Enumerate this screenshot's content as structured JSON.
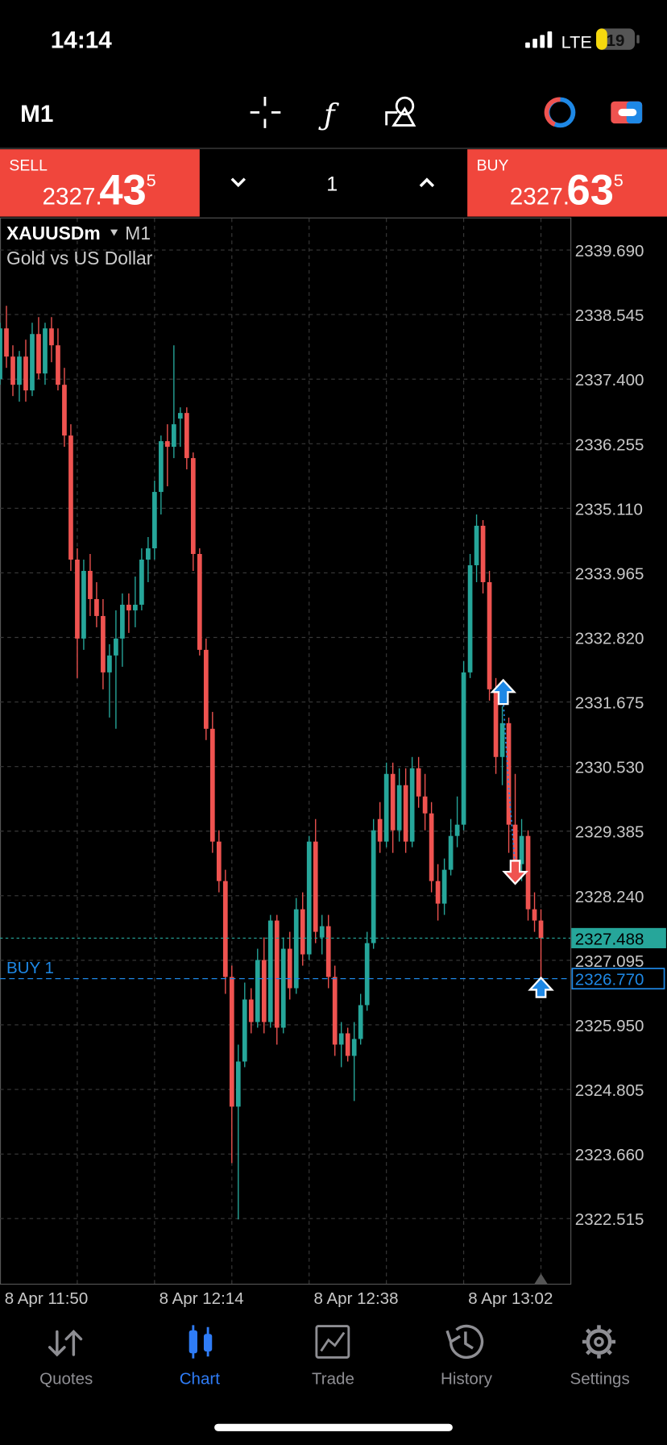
{
  "status_bar": {
    "time": "14:14",
    "network": "LTE",
    "battery": "19"
  },
  "toolbar": {
    "timeframe": "M1"
  },
  "trade_panel": {
    "sell": {
      "label": "SELL",
      "price_head": "2327.",
      "price_big": "43",
      "price_tail": "5"
    },
    "volume": "1",
    "buy": {
      "label": "BUY",
      "price_head": "2327.",
      "price_big": "63",
      "price_tail": "5"
    }
  },
  "chart_data": {
    "type": "candlestick",
    "symbol": "XAUUSDm",
    "timeframe": "M1",
    "description": "Gold vs US Dollar",
    "categories": [
      "8 Apr 11:50",
      null,
      null,
      null,
      null,
      null,
      null,
      null,
      null,
      null,
      null,
      null,
      null,
      null,
      null,
      null,
      null,
      null,
      null,
      null,
      null,
      null,
      null,
      null,
      "8 Apr 12:14",
      null,
      null,
      null,
      null,
      null,
      null,
      null,
      null,
      null,
      null,
      null,
      null,
      null,
      null,
      null,
      null,
      null,
      null,
      null,
      null,
      null,
      null,
      null,
      "8 Apr 12:38",
      null,
      null,
      null,
      null,
      null,
      null,
      null,
      null,
      null,
      null,
      null,
      null,
      null,
      null,
      null,
      null,
      null,
      null,
      null,
      null,
      null,
      null,
      null,
      "8 Apr 13:02",
      null,
      null,
      null,
      null,
      null,
      null,
      null,
      null,
      null,
      null,
      null,
      null
    ],
    "open": [
      2337.4,
      2338.3,
      2337.8,
      2337.3,
      2337.8,
      2337.2,
      2338.2,
      2337.5,
      2338.3,
      2338.0,
      2337.3,
      2336.4,
      2334.2,
      2332.8,
      2334.0,
      2333.5,
      2333.2,
      2332.2,
      2332.5,
      2332.8,
      2333.4,
      2333.3,
      2333.4,
      2334.2,
      2334.4,
      2335.4,
      2336.3,
      2336.2,
      2336.7,
      2336.8,
      2336.0,
      2334.3,
      2332.6,
      2331.2,
      2329.2,
      2328.5,
      2326.8,
      2324.5,
      2325.3,
      2326.4,
      2326.0,
      2327.1,
      2326.0,
      2327.8,
      2325.9,
      2327.3,
      2326.6,
      2328.0,
      2327.2,
      2329.2,
      2327.5,
      2327.7,
      2326.8,
      2325.6,
      2325.8,
      2325.4,
      2325.7,
      2326.3,
      2327.4,
      2329.6,
      2329.2,
      2330.4,
      2329.4,
      2330.2,
      2329.2,
      2330.5,
      2330.0,
      2329.7,
      2328.5,
      2328.1,
      2328.7,
      2329.3,
      2329.5,
      2332.2,
      2334.1,
      2334.8,
      2333.8,
      2331.9,
      2330.7,
      2331.3,
      2329.5,
      2328.8,
      2329.3,
      2328.0,
      2327.8
    ],
    "high": [
      2338.4,
      2338.7,
      2338.0,
      2337.9,
      2338.1,
      2338.4,
      2338.5,
      2338.4,
      2338.5,
      2338.3,
      2337.6,
      2336.6,
      2334.4,
      2334.2,
      2334.3,
      2333.8,
      2333.5,
      2332.7,
      2333.3,
      2333.6,
      2333.6,
      2333.9,
      2334.4,
      2334.6,
      2335.6,
      2336.4,
      2336.6,
      2338.0,
      2336.9,
      2336.9,
      2336.1,
      2334.4,
      2332.8,
      2331.5,
      2329.4,
      2328.7,
      2327.0,
      2325.6,
      2326.7,
      2326.6,
      2327.3,
      2327.5,
      2327.9,
      2327.9,
      2327.5,
      2327.6,
      2328.2,
      2328.3,
      2329.3,
      2329.6,
      2327.9,
      2327.9,
      2327.0,
      2326.0,
      2325.9,
      2326.0,
      2326.5,
      2327.6,
      2329.6,
      2329.9,
      2330.6,
      2330.6,
      2330.5,
      2330.5,
      2330.7,
      2330.7,
      2330.4,
      2329.9,
      2328.8,
      2328.9,
      2329.6,
      2330.0,
      2332.4,
      2334.3,
      2335.0,
      2334.9,
      2334.0,
      2332.1,
      2331.6,
      2331.4,
      2330.4,
      2329.6,
      2329.4,
      2328.3,
      2328.0
    ],
    "low": [
      2337.3,
      2337.6,
      2337.1,
      2337.0,
      2337.0,
      2337.1,
      2337.4,
      2337.3,
      2337.7,
      2337.2,
      2336.2,
      2334.0,
      2332.1,
      2332.6,
      2333.2,
      2333.0,
      2331.9,
      2331.4,
      2331.2,
      2332.3,
      2332.9,
      2333.0,
      2333.3,
      2333.8,
      2334.2,
      2335.0,
      2335.5,
      2336.0,
      2336.2,
      2335.8,
      2334.0,
      2332.5,
      2331.0,
      2329.0,
      2328.3,
      2326.5,
      2323.5,
      2322.5,
      2325.2,
      2325.8,
      2325.9,
      2325.8,
      2325.9,
      2325.6,
      2325.8,
      2326.4,
      2326.5,
      2327.0,
      2327.1,
      2327.4,
      2327.2,
      2326.6,
      2325.4,
      2325.2,
      2325.3,
      2324.6,
      2325.6,
      2326.2,
      2327.3,
      2329.0,
      2329.1,
      2329.0,
      2329.2,
      2329.0,
      2329.1,
      2329.8,
      2329.4,
      2328.3,
      2327.8,
      2327.9,
      2328.6,
      2329.1,
      2329.4,
      2332.1,
      2333.8,
      2333.6,
      2331.7,
      2330.4,
      2330.2,
      2329.0,
      2328.6,
      2328.5,
      2327.8,
      2327.6,
      2326.8
    ],
    "close": [
      2338.3,
      2337.8,
      2337.3,
      2337.8,
      2337.2,
      2338.2,
      2337.5,
      2338.3,
      2338.0,
      2337.3,
      2336.4,
      2334.2,
      2332.8,
      2334.0,
      2333.5,
      2333.2,
      2332.2,
      2332.5,
      2332.8,
      2333.4,
      2333.3,
      2333.4,
      2334.2,
      2334.4,
      2335.4,
      2336.3,
      2336.2,
      2336.6,
      2336.8,
      2336.0,
      2334.3,
      2332.6,
      2331.2,
      2329.2,
      2328.5,
      2326.8,
      2324.5,
      2325.3,
      2326.4,
      2326.0,
      2327.1,
      2326.0,
      2327.8,
      2325.9,
      2327.3,
      2326.6,
      2328.0,
      2327.2,
      2329.2,
      2327.6,
      2327.7,
      2326.8,
      2325.6,
      2325.8,
      2325.4,
      2325.7,
      2326.3,
      2327.4,
      2329.4,
      2329.2,
      2330.4,
      2329.4,
      2330.2,
      2329.2,
      2330.5,
      2330.0,
      2329.7,
      2328.5,
      2328.1,
      2328.7,
      2329.3,
      2329.5,
      2332.2,
      2334.1,
      2334.8,
      2333.8,
      2331.9,
      2330.7,
      2331.3,
      2329.5,
      2328.8,
      2329.3,
      2328.0,
      2327.8,
      2327.488
    ],
    "up_color": "#26a69a",
    "down_color": "#ef5350",
    "ylim": [
      2321.36,
      2340.25
    ],
    "yticks": [
      {
        "value": 2339.69,
        "label": "2339.690"
      },
      2338.545,
      {
        "value": 2337.4,
        "label": "2337.400"
      },
      2336.255,
      {
        "value": 2335.11,
        "label": "2335.110"
      },
      2333.965,
      {
        "value": 2332.82,
        "label": "2332.820"
      },
      2331.675,
      {
        "value": 2330.53,
        "label": "2330.530"
      },
      2329.385,
      {
        "value": 2328.24,
        "label": "2328.240"
      },
      2327.095,
      {
        "value": 2325.95,
        "label": "2325.950"
      },
      2324.805,
      {
        "value": 2323.66,
        "label": "2323.660"
      },
      2322.515
    ],
    "grid": true,
    "price_line": 2327.488,
    "position": {
      "label": "BUY 1",
      "price": {
        "value": 2326.77,
        "label": "2326.770"
      }
    }
  },
  "tab_bar": {
    "tabs": [
      "Quotes",
      "Chart",
      "Trade",
      "History",
      "Settings"
    ],
    "active": 1
  }
}
